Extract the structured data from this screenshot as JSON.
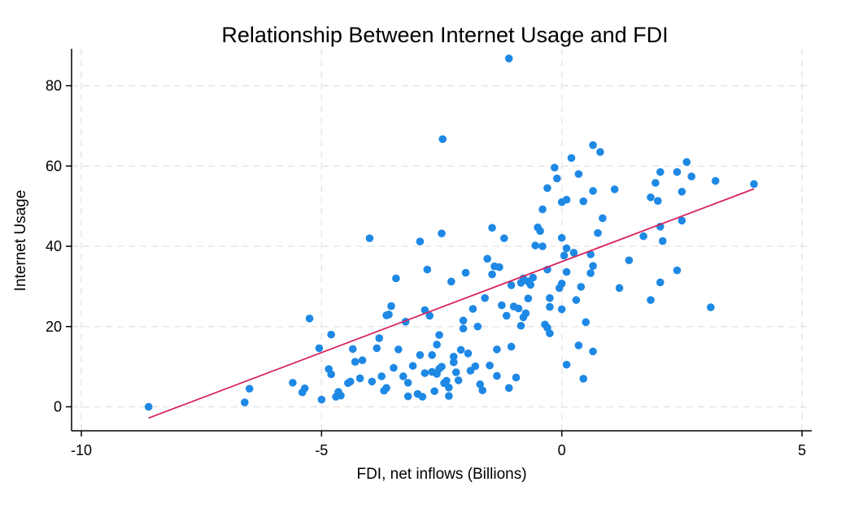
{
  "chart_data": {
    "type": "scatter",
    "title": "Relationship Between Internet Usage and FDI",
    "xlabel": "FDI, net inflows (Billions)",
    "ylabel": "Internet Usage",
    "xlim": [
      -10,
      5
    ],
    "ylim": [
      -6,
      90
    ],
    "x_ticks": [
      -10,
      -5,
      0,
      5
    ],
    "y_ticks": [
      0,
      20,
      40,
      60,
      80
    ],
    "x_tick_labels": [
      "-10",
      "-5",
      "0",
      "5"
    ],
    "y_tick_labels": [
      "0",
      "20",
      "40",
      "60",
      "80"
    ],
    "grid": true,
    "legend": "none",
    "colors": {
      "points": "#1e88e5",
      "fit_line": "#d6265e",
      "grid": "#e6e6e6",
      "axis": "#000000"
    },
    "fit_line": {
      "x": [
        -8.6,
        4.0
      ],
      "y": [
        -2.8,
        54.3
      ]
    },
    "points": [
      [
        -8.6,
        0.0
      ],
      [
        -6.6,
        1.1
      ],
      [
        -6.5,
        4.5
      ],
      [
        -5.6,
        6.0
      ],
      [
        -5.4,
        3.6
      ],
      [
        -5.35,
        4.6
      ],
      [
        -5.25,
        22.0
      ],
      [
        -5.05,
        14.6
      ],
      [
        -5.0,
        1.8
      ],
      [
        -4.85,
        9.4
      ],
      [
        -4.8,
        8.1
      ],
      [
        -4.8,
        18.0
      ],
      [
        -4.7,
        2.5
      ],
      [
        -4.65,
        3.7
      ],
      [
        -4.6,
        2.8
      ],
      [
        -4.45,
        5.9
      ],
      [
        -4.4,
        6.3
      ],
      [
        -4.35,
        14.4
      ],
      [
        -4.3,
        11.2
      ],
      [
        -4.2,
        7.1
      ],
      [
        -4.15,
        11.6
      ],
      [
        -4.0,
        42.0
      ],
      [
        -3.95,
        6.3
      ],
      [
        -3.85,
        14.6
      ],
      [
        -3.8,
        17.1
      ],
      [
        -3.75,
        7.6
      ],
      [
        -3.7,
        4.0
      ],
      [
        -3.65,
        4.7
      ],
      [
        -3.65,
        22.8
      ],
      [
        -3.6,
        23.0
      ],
      [
        -3.55,
        25.1
      ],
      [
        -3.5,
        9.7
      ],
      [
        -3.45,
        32.0
      ],
      [
        -3.4,
        14.3
      ],
      [
        -3.3,
        7.6
      ],
      [
        -3.25,
        21.2
      ],
      [
        -3.2,
        6.0
      ],
      [
        -3.2,
        2.6
      ],
      [
        -3.1,
        10.2
      ],
      [
        -3.0,
        3.2
      ],
      [
        -2.95,
        41.2
      ],
      [
        -2.95,
        12.9
      ],
      [
        -2.9,
        2.5
      ],
      [
        -2.85,
        24.1
      ],
      [
        -2.85,
        8.4
      ],
      [
        -2.8,
        34.2
      ],
      [
        -2.75,
        22.7
      ],
      [
        -2.7,
        8.7
      ],
      [
        -2.7,
        12.9
      ],
      [
        -2.65,
        3.9
      ],
      [
        -2.6,
        15.5
      ],
      [
        -2.6,
        8.2
      ],
      [
        -2.55,
        17.9
      ],
      [
        -2.55,
        9.5
      ],
      [
        -2.5,
        43.2
      ],
      [
        -2.5,
        10.0
      ],
      [
        -2.48,
        66.7
      ],
      [
        -2.45,
        5.9
      ],
      [
        -2.4,
        6.5
      ],
      [
        -2.35,
        4.8
      ],
      [
        -2.35,
        2.7
      ],
      [
        -2.3,
        31.2
      ],
      [
        -2.25,
        12.5
      ],
      [
        -2.25,
        11.1
      ],
      [
        -2.2,
        8.6
      ],
      [
        -2.15,
        6.6
      ],
      [
        -2.1,
        14.2
      ],
      [
        -2.05,
        19.5
      ],
      [
        -2.05,
        21.5
      ],
      [
        -2.0,
        33.4
      ],
      [
        -1.95,
        13.3
      ],
      [
        -1.9,
        9.0
      ],
      [
        -1.85,
        24.4
      ],
      [
        -1.8,
        10.1
      ],
      [
        -1.75,
        20.0
      ],
      [
        -1.7,
        5.6
      ],
      [
        -1.65,
        4.1
      ],
      [
        -1.6,
        27.1
      ],
      [
        -1.55,
        36.9
      ],
      [
        -1.5,
        10.3
      ],
      [
        -1.45,
        44.6
      ],
      [
        -1.45,
        33.0
      ],
      [
        -1.4,
        35.0
      ],
      [
        -1.35,
        14.3
      ],
      [
        -1.35,
        7.7
      ],
      [
        -1.3,
        34.8
      ],
      [
        -1.25,
        25.3
      ],
      [
        -1.2,
        42.0
      ],
      [
        -1.15,
        22.7
      ],
      [
        -1.1,
        4.7
      ],
      [
        -1.05,
        30.3
      ],
      [
        -1.05,
        15.0
      ],
      [
        -1.0,
        25.0
      ],
      [
        -0.95,
        7.3
      ],
      [
        -0.9,
        24.5
      ],
      [
        -0.85,
        30.9
      ],
      [
        -1.1,
        86.8
      ],
      [
        -0.85,
        20.2
      ],
      [
        -0.8,
        22.3
      ],
      [
        -0.8,
        32.0
      ],
      [
        -0.75,
        23.3
      ],
      [
        -0.7,
        27.0
      ],
      [
        -0.7,
        31.2
      ],
      [
        -0.65,
        30.4
      ],
      [
        -0.6,
        32.2
      ],
      [
        -0.55,
        40.2
      ],
      [
        -0.5,
        44.7
      ],
      [
        -0.45,
        43.8
      ],
      [
        -0.4,
        49.2
      ],
      [
        -0.4,
        40.0
      ],
      [
        -0.35,
        20.5
      ],
      [
        -0.3,
        54.5
      ],
      [
        -0.3,
        19.7
      ],
      [
        -0.3,
        34.2
      ],
      [
        -0.25,
        27.1
      ],
      [
        -0.25,
        24.9
      ],
      [
        -0.25,
        18.3
      ],
      [
        -0.15,
        59.6
      ],
      [
        -0.1,
        56.9
      ],
      [
        -0.05,
        29.6
      ],
      [
        0.0,
        30.7
      ],
      [
        0.0,
        24.3
      ],
      [
        0.0,
        42.1
      ],
      [
        0.0,
        51.0
      ],
      [
        0.05,
        37.7
      ],
      [
        0.1,
        39.5
      ],
      [
        0.1,
        33.6
      ],
      [
        0.1,
        10.5
      ],
      [
        0.1,
        51.6
      ],
      [
        0.2,
        62.0
      ],
      [
        0.25,
        38.4
      ],
      [
        0.3,
        26.6
      ],
      [
        0.35,
        15.3
      ],
      [
        0.35,
        58.0
      ],
      [
        0.4,
        29.9
      ],
      [
        0.45,
        7.0
      ],
      [
        0.45,
        51.2
      ],
      [
        0.5,
        21.1
      ],
      [
        0.6,
        38.0
      ],
      [
        0.6,
        33.3
      ],
      [
        0.65,
        35.1
      ],
      [
        0.65,
        53.8
      ],
      [
        0.65,
        65.2
      ],
      [
        0.65,
        13.8
      ],
      [
        0.75,
        43.3
      ],
      [
        0.8,
        63.5
      ],
      [
        0.85,
        47.0
      ],
      [
        1.1,
        54.2
      ],
      [
        1.2,
        29.6
      ],
      [
        1.4,
        36.5
      ],
      [
        1.7,
        42.5
      ],
      [
        1.85,
        26.6
      ],
      [
        1.85,
        52.2
      ],
      [
        1.95,
        55.8
      ],
      [
        2.0,
        51.3
      ],
      [
        2.05,
        58.5
      ],
      [
        2.05,
        44.9
      ],
      [
        2.05,
        31.0
      ],
      [
        2.1,
        41.3
      ],
      [
        2.4,
        58.5
      ],
      [
        2.4,
        34.0
      ],
      [
        2.5,
        46.4
      ],
      [
        2.5,
        53.6
      ],
      [
        2.6,
        61.0
      ],
      [
        2.7,
        57.4
      ],
      [
        3.1,
        24.8
      ],
      [
        3.2,
        56.3
      ],
      [
        4.0,
        55.5
      ]
    ]
  }
}
